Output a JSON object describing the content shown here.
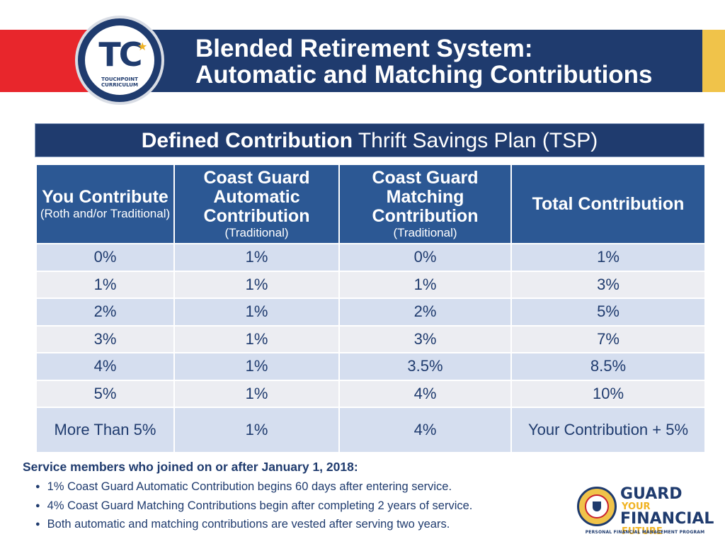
{
  "header": {
    "logo_letters": "TC",
    "logo_subtitle": "TOUCHPOINT CURRICULUM",
    "title_line1": "Blended Retirement System:",
    "title_line2": "Automatic and Matching Contributions",
    "colors": {
      "navy": "#1f3b6e",
      "red": "#e8262c",
      "gold": "#f0c34a"
    }
  },
  "banner": {
    "bold": "Defined Contribution",
    "regular": " Thrift Savings Plan (TSP)"
  },
  "table": {
    "headers": [
      {
        "title": "You Contribute",
        "sub": "(Roth and/or Traditional)"
      },
      {
        "title": "Coast Guard Automatic Contribution",
        "sub": "(Traditional)"
      },
      {
        "title": "Coast Guard Matching Contribution",
        "sub": "(Traditional)"
      },
      {
        "title": "Total Contribution",
        "sub": ""
      }
    ],
    "rows": [
      [
        "0%",
        "1%",
        "0%",
        "1%"
      ],
      [
        "1%",
        "1%",
        "1%",
        "3%"
      ],
      [
        "2%",
        "1%",
        "2%",
        "5%"
      ],
      [
        "3%",
        "1%",
        "3%",
        "7%"
      ],
      [
        "4%",
        "1%",
        "3.5%",
        "8.5%"
      ],
      [
        "5%",
        "1%",
        "4%",
        "10%"
      ],
      [
        "More Than 5%",
        "1%",
        "4%",
        "Your Contribution + 5%"
      ]
    ]
  },
  "notes": {
    "title": "Service members who joined on or after January 1, 2018:",
    "items": [
      "1% Coast Guard Automatic Contribution begins 60 days after entering service.",
      "4% Coast Guard Matching Contributions begin after completing 2 years of service.",
      "Both automatic and matching contributions are vested after serving two years."
    ]
  },
  "footer_logo": {
    "line1": "GUARD",
    "line2": "YOUR",
    "line3": "FINANCIAL",
    "line4": "FUTURE",
    "tagline": "PERSONAL FINANCIAL MANAGEMENT PROGRAM"
  }
}
